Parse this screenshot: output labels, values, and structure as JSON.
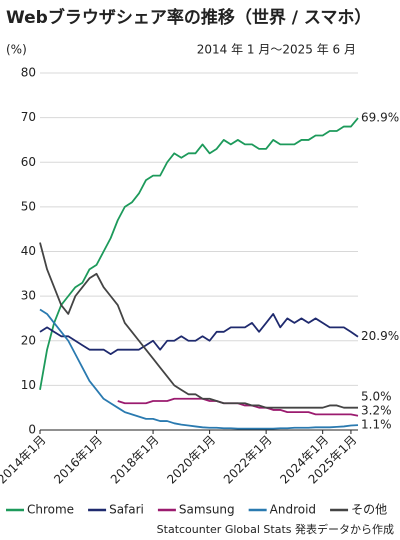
{
  "chart_data": {
    "type": "line",
    "title": "Webブラウザシェア率の推移（世界 / スマホ）",
    "subtitle": "2014 年 1 月〜2025 年 6 月",
    "y_label": "(%)",
    "source": "Statcounter Global Stats 発表データから作成",
    "categories": [
      "2014年1月",
      null,
      null,
      null,
      null,
      null,
      null,
      null,
      "2016年1月",
      null,
      null,
      null,
      null,
      null,
      null,
      null,
      "2018年1月",
      null,
      null,
      null,
      null,
      null,
      null,
      null,
      "2020年1月",
      null,
      null,
      null,
      null,
      null,
      null,
      null,
      "2022年1月",
      null,
      null,
      null,
      null,
      null,
      null,
      null,
      "2024年1月",
      null,
      null,
      null,
      "2025年1月",
      null
    ],
    "ylim": [
      0,
      80
    ],
    "yticks": [
      0,
      10,
      20,
      30,
      40,
      50,
      60,
      70,
      80
    ],
    "grid": true,
    "series": [
      {
        "name": "Chrome",
        "color": "#1d9a5b",
        "values": [
          9,
          18,
          24,
          28,
          30,
          32,
          33,
          36,
          37,
          40,
          43,
          47,
          50,
          51,
          53,
          56,
          57,
          57,
          60,
          62,
          61,
          62,
          62,
          64,
          62,
          63,
          65,
          64,
          65,
          64,
          64,
          63,
          63,
          65,
          64,
          64,
          64,
          65,
          65,
          66,
          66,
          67,
          67,
          68,
          68,
          69.9
        ],
        "value_labels": [
          null,
          null,
          null,
          null,
          null,
          null,
          null,
          null,
          null,
          null,
          null,
          null,
          null,
          null,
          null,
          null,
          null,
          null,
          null,
          null,
          null,
          null,
          null,
          null,
          null,
          null,
          null,
          null,
          null,
          null,
          null,
          null,
          null,
          null,
          null,
          null,
          null,
          null,
          null,
          null,
          null,
          null,
          null,
          null,
          null,
          "69.9%"
        ]
      },
      {
        "name": "Safari",
        "color": "#1f2a6e",
        "values": [
          22,
          23,
          22,
          21,
          21,
          20,
          19,
          18,
          18,
          18,
          17,
          18,
          18,
          18,
          18,
          19,
          20,
          18,
          20,
          20,
          21,
          20,
          20,
          21,
          20,
          22,
          22,
          23,
          23,
          23,
          24,
          22,
          24,
          26,
          23,
          25,
          24,
          25,
          24,
          25,
          24,
          23,
          23,
          23,
          22,
          20.9
        ],
        "value_labels": [
          null,
          null,
          null,
          null,
          null,
          null,
          null,
          null,
          null,
          null,
          null,
          null,
          null,
          null,
          null,
          null,
          null,
          null,
          null,
          null,
          null,
          null,
          null,
          null,
          null,
          null,
          null,
          null,
          null,
          null,
          null,
          null,
          null,
          null,
          null,
          null,
          null,
          null,
          null,
          null,
          null,
          null,
          null,
          null,
          null,
          "20.9%"
        ]
      },
      {
        "name": "Samsung",
        "color": "#9b1b6f",
        "values": [
          null,
          null,
          null,
          null,
          null,
          null,
          null,
          null,
          null,
          null,
          null,
          6.5,
          6,
          6,
          6,
          6,
          6.5,
          6.5,
          6.5,
          7,
          7,
          7,
          7,
          7,
          6.5,
          6.5,
          6,
          6,
          6,
          5.5,
          5.5,
          5,
          5,
          4.5,
          4.5,
          4,
          4,
          4,
          4,
          3.5,
          3.5,
          3.5,
          3.5,
          3.5,
          3.5,
          3.2
        ],
        "value_labels": [
          null,
          null,
          null,
          null,
          null,
          null,
          null,
          null,
          null,
          null,
          null,
          null,
          null,
          null,
          null,
          null,
          null,
          null,
          null,
          null,
          null,
          null,
          null,
          null,
          null,
          null,
          null,
          null,
          null,
          null,
          null,
          null,
          null,
          null,
          null,
          null,
          null,
          null,
          null,
          null,
          null,
          null,
          null,
          null,
          null,
          "3.2%"
        ]
      },
      {
        "name": "Android",
        "color": "#2a7ab0",
        "values": [
          27,
          26,
          24,
          22,
          20,
          17,
          14,
          11,
          9,
          7,
          6,
          5,
          4,
          3.5,
          3,
          2.5,
          2.5,
          2,
          2,
          1.5,
          1.2,
          1,
          0.8,
          0.6,
          0.5,
          0.5,
          0.4,
          0.4,
          0.3,
          0.3,
          0.3,
          0.3,
          0.3,
          0.3,
          0.4,
          0.4,
          0.5,
          0.5,
          0.5,
          0.6,
          0.6,
          0.6,
          0.7,
          0.8,
          1.0,
          1.1
        ],
        "value_labels": [
          null,
          null,
          null,
          null,
          null,
          null,
          null,
          null,
          null,
          null,
          null,
          null,
          null,
          null,
          null,
          null,
          null,
          null,
          null,
          null,
          null,
          null,
          null,
          null,
          null,
          null,
          null,
          null,
          null,
          null,
          null,
          null,
          null,
          null,
          null,
          null,
          null,
          null,
          null,
          null,
          null,
          null,
          null,
          null,
          null,
          "1.1%"
        ]
      },
      {
        "name": "その他",
        "color": "#444444",
        "values": [
          42,
          36,
          32,
          28,
          26,
          30,
          32,
          34,
          35,
          32,
          30,
          28,
          24,
          22,
          20,
          18,
          16,
          14,
          12,
          10,
          9,
          8,
          8,
          7,
          7,
          6.5,
          6,
          6,
          6,
          6,
          5.5,
          5.5,
          5,
          5,
          5,
          5,
          5,
          5,
          5,
          5,
          5,
          5.5,
          5.5,
          5,
          5,
          5.0
        ],
        "value_labels": [
          null,
          null,
          null,
          null,
          null,
          null,
          null,
          null,
          null,
          null,
          null,
          null,
          null,
          null,
          null,
          null,
          null,
          null,
          null,
          null,
          null,
          null,
          null,
          null,
          null,
          null,
          null,
          null,
          null,
          null,
          null,
          null,
          null,
          null,
          null,
          null,
          null,
          null,
          null,
          null,
          null,
          null,
          null,
          null,
          null,
          "5.0%"
        ]
      }
    ]
  }
}
